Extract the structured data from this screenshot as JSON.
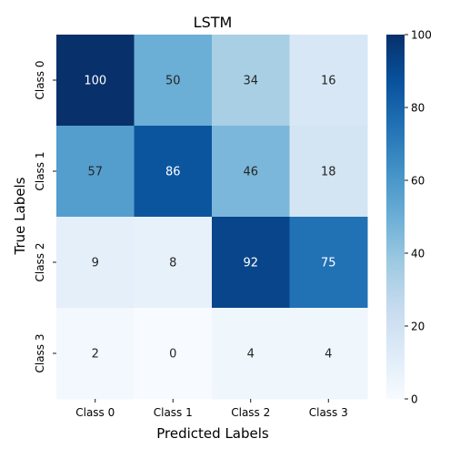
{
  "chart_data": {
    "type": "heatmap",
    "title": "LSTM",
    "xlabel": "Predicted Labels",
    "ylabel": "True Labels",
    "x_categories": [
      "Class 0",
      "Class 1",
      "Class 2",
      "Class 3"
    ],
    "y_categories": [
      "Class 0",
      "Class 1",
      "Class 2",
      "Class 3"
    ],
    "values": [
      [
        100,
        50,
        34,
        16
      ],
      [
        57,
        86,
        46,
        18
      ],
      [
        9,
        8,
        92,
        75
      ],
      [
        2,
        0,
        4,
        4
      ]
    ],
    "colorbar": {
      "min": 0,
      "max": 100,
      "ticks": [
        0,
        20,
        40,
        60,
        80,
        100
      ]
    },
    "colormap": "Blues",
    "colormap_stops": [
      "#f7fbff",
      "#deebf7",
      "#c6dbef",
      "#9ecae1",
      "#6baed6",
      "#4292c6",
      "#2171b5",
      "#08519c",
      "#08306b"
    ],
    "annotation_colors": {
      "light_background": "#262626",
      "dark_background": "#ffffff"
    }
  }
}
